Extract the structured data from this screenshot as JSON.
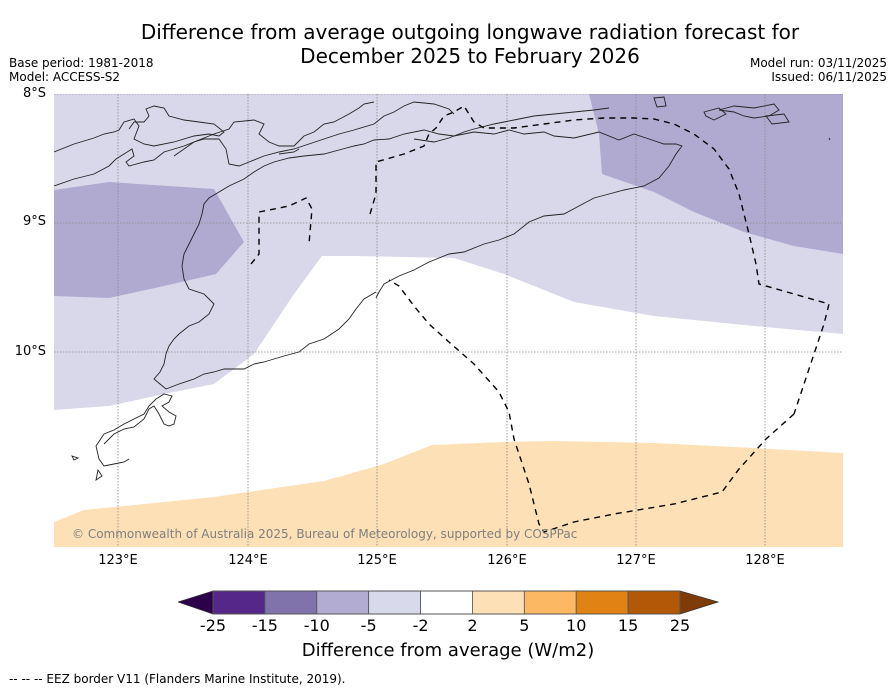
{
  "title": {
    "line1": "Difference from average outgoing longwave radiation forecast for",
    "line2": "December 2025 to February 2026"
  },
  "meta_left": {
    "base_period": "Base period: 1981-2018",
    "model": "Model: ACCESS-S2"
  },
  "meta_right": {
    "model_run": "Model run: 03/11/2025",
    "issued": "Issued: 06/11/2025"
  },
  "map": {
    "lat_labels": [
      "8°S",
      "9°S",
      "10°S"
    ],
    "lon_labels": [
      "123°E",
      "124°E",
      "125°E",
      "126°E",
      "127°E",
      "128°E"
    ],
    "lat_range": [
      -11.5,
      -8.0
    ],
    "lon_range": [
      122.5,
      128.6
    ],
    "copyright": "© Commonwealth of Australia 2025, Bureau of Meteorology, supported by COSPPac",
    "regions": [
      {
        "name": "-10 to -5",
        "color": "#b0aad1"
      },
      {
        "name": "-5 to -2",
        "color": "#d8d8ea"
      },
      {
        "name": "-2 to 2",
        "color": "#ffffff"
      },
      {
        "name": "2 to 5",
        "color": "#fde0b6"
      }
    ]
  },
  "colorbar": {
    "ticks": [
      "-25",
      "-15",
      "-10",
      "-5",
      "-2",
      "2",
      "5",
      "10",
      "15",
      "25"
    ],
    "under_color": "#2d004b",
    "over_color": "#7f3b08",
    "colors": [
      "#542788",
      "#8073ac",
      "#b2abd2",
      "#d8daeb",
      "#ffffff",
      "#fee0b6",
      "#fdb863",
      "#e08214",
      "#b35806"
    ],
    "label": "Difference from average (W/m2)"
  },
  "footer": {
    "eez_note": "--  --  -- EEZ border V11 (Flanders Marine Institute, 2019)."
  }
}
